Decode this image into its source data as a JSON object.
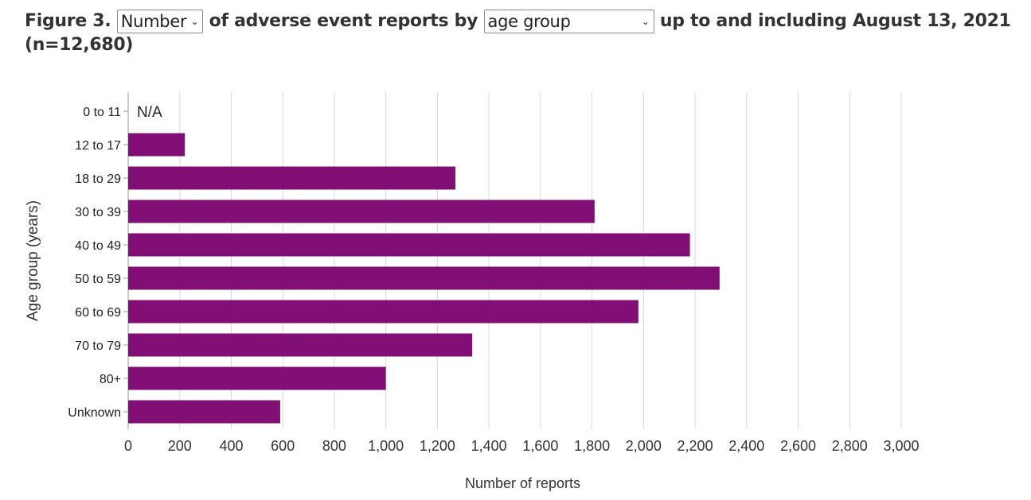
{
  "title": {
    "prefix": "Figure 3.",
    "measure_select": "Number",
    "middle": "of adverse event reports by",
    "group_select": "age group",
    "suffix": "up to and including August 13, 2021",
    "count": "(n=12,680)"
  },
  "colors": {
    "bar": "#820f76",
    "grid": "#d9d9d9",
    "text": "#333333"
  },
  "icons": {
    "dropdown": "chevron-down-icon"
  },
  "chart_data": {
    "type": "bar",
    "orientation": "horizontal",
    "categories": [
      "0 to 11",
      "12 to 17",
      "18 to 29",
      "30 to 39",
      "40 to 49",
      "50 to 59",
      "60 to 69",
      "70 to 79",
      "80+",
      "Unknown"
    ],
    "values": [
      null,
      220,
      1270,
      1810,
      2180,
      2295,
      1980,
      1335,
      1000,
      590
    ],
    "value_labels": [
      "N/A",
      "",
      "",
      "",
      "",
      "",
      "",
      "",
      "",
      ""
    ],
    "xlabel": "Number of reports",
    "ylabel": "Age group (years)",
    "xlim": [
      0,
      3000
    ],
    "xticks": [
      0,
      200,
      400,
      600,
      800,
      1000,
      1200,
      1400,
      1600,
      1800,
      2000,
      2200,
      2400,
      2600,
      2800,
      3000
    ],
    "xtick_labels": [
      "0",
      "200",
      "400",
      "600",
      "800",
      "1,000",
      "1,200",
      "1,400",
      "1,600",
      "1,800",
      "2,000",
      "2,200",
      "2,400",
      "2,600",
      "2,800",
      "3,000"
    ],
    "grid": "vertical"
  }
}
